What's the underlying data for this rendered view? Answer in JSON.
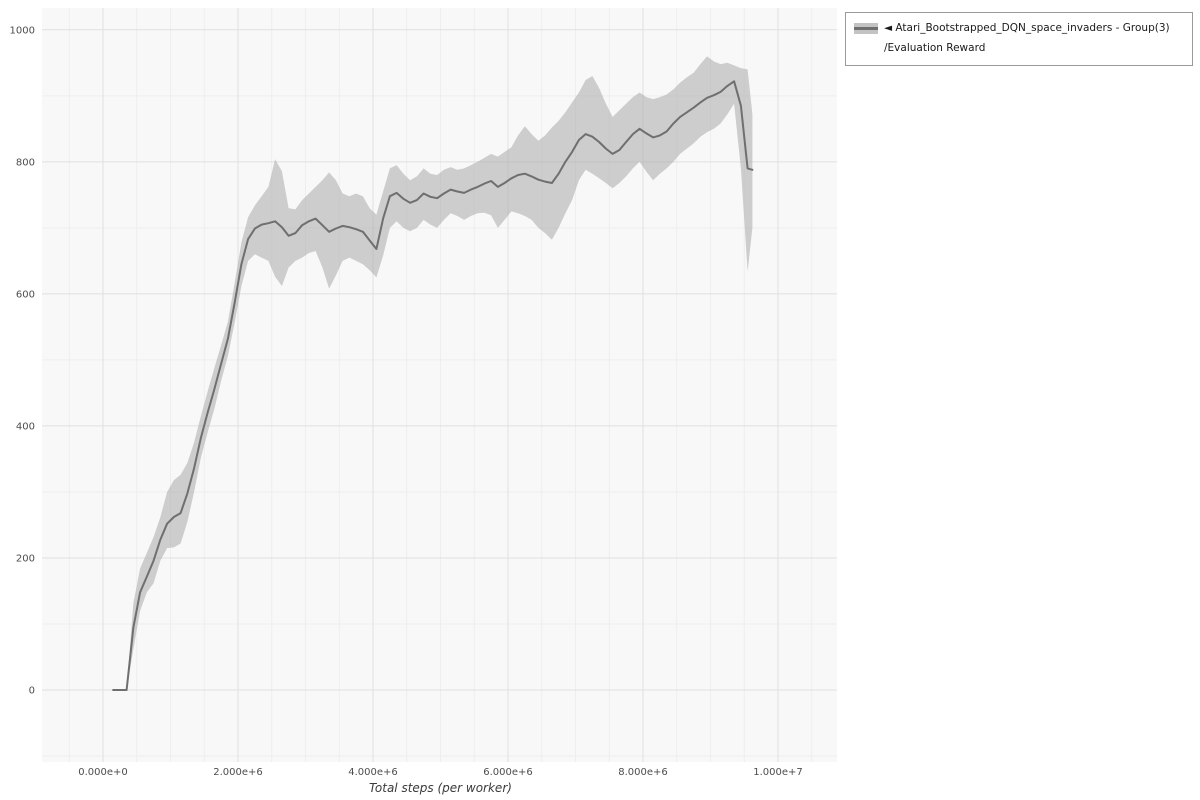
{
  "style": {
    "page_bg": "#ffffff",
    "plot_bg": "#f8f8f8",
    "grid_major": "#e0e0e0",
    "grid_minor": "#eeeeee",
    "tick_color": "#4d4d4d",
    "line_color": "#6f6f6f",
    "band_color": "#a9a9a9"
  },
  "legend": {
    "toggle_icon": "◄",
    "series_name": "Atari_Bootstrapped_DQN_space_invaders - Group(3)",
    "metric_name": "/Evaluation Reward"
  },
  "chart_data": {
    "type": "line",
    "title": "",
    "xlabel": "Total steps (per worker)",
    "ylabel": "",
    "grid": true,
    "legend_position": "outside-top-right",
    "xlim": [
      -903700,
      10874000
    ],
    "ylim": [
      -109,
      1033
    ],
    "x_unit": 1000000,
    "x_minor_step": 500000,
    "y_minor_step": 100,
    "x_ticks": [
      0,
      2000000,
      4000000,
      6000000,
      8000000,
      10000000
    ],
    "x_tick_labels": [
      "0.000e+0",
      "2.000e+6",
      "4.000e+6",
      "6.000e+6",
      "8.000e+6",
      "1.000e+7"
    ],
    "y_ticks": [
      0,
      200,
      400,
      600,
      800,
      1000
    ],
    "y_tick_labels": [
      "0",
      "200",
      "400",
      "600",
      "800",
      "1000"
    ],
    "series": [
      {
        "name": "Atari_Bootstrapped_DQN_space_invaders - Group(3)/Evaluation Reward",
        "color": "#6f6f6f",
        "band_color": "#a9a9a9",
        "band_opacity": 0.55,
        "x": [
          0.15,
          0.35,
          0.45,
          0.55,
          0.65,
          0.75,
          0.85,
          0.95,
          1.05,
          1.15,
          1.25,
          1.35,
          1.45,
          1.55,
          1.65,
          1.75,
          1.85,
          1.95,
          2.05,
          2.15,
          2.25,
          2.35,
          2.45,
          2.55,
          2.65,
          2.75,
          2.85,
          2.95,
          3.05,
          3.15,
          3.25,
          3.35,
          3.45,
          3.55,
          3.65,
          3.75,
          3.85,
          3.95,
          4.05,
          4.15,
          4.25,
          4.35,
          4.45,
          4.55,
          4.65,
          4.75,
          4.85,
          4.95,
          5.05,
          5.15,
          5.25,
          5.35,
          5.45,
          5.55,
          5.65,
          5.75,
          5.85,
          5.95,
          6.05,
          6.15,
          6.25,
          6.35,
          6.45,
          6.55,
          6.65,
          6.75,
          6.85,
          6.95,
          7.05,
          7.15,
          7.25,
          7.35,
          7.45,
          7.55,
          7.65,
          7.75,
          7.85,
          7.95,
          8.05,
          8.15,
          8.25,
          8.35,
          8.45,
          8.55,
          8.65,
          8.75,
          8.85,
          8.95,
          9.05,
          9.15,
          9.25,
          9.35,
          9.45,
          9.55,
          9.62
        ],
        "mean": [
          0,
          0,
          95,
          148,
          172,
          196,
          228,
          252,
          262,
          268,
          298,
          336,
          382,
          420,
          456,
          494,
          532,
          586,
          645,
          683,
          699,
          705,
          707,
          710,
          701,
          688,
          692,
          704,
          710,
          714,
          704,
          694,
          699,
          703,
          701,
          698,
          694,
          681,
          668,
          714,
          748,
          753,
          744,
          738,
          742,
          752,
          747,
          745,
          752,
          758,
          755,
          753,
          758,
          762,
          767,
          771,
          762,
          768,
          775,
          780,
          782,
          778,
          773,
          770,
          768,
          782,
          800,
          815,
          833,
          842,
          838,
          830,
          820,
          812,
          818,
          830,
          842,
          850,
          843,
          837,
          840,
          846,
          858,
          868,
          875,
          882,
          890,
          897,
          901,
          906,
          915,
          922,
          885,
          790,
          788
        ],
        "lower": [
          0,
          0,
          62,
          120,
          148,
          162,
          196,
          215,
          216,
          222,
          255,
          300,
          352,
          390,
          426,
          468,
          506,
          556,
          612,
          650,
          660,
          655,
          650,
          626,
          612,
          640,
          650,
          655,
          662,
          665,
          640,
          608,
          628,
          650,
          655,
          650,
          645,
          636,
          625,
          658,
          700,
          710,
          700,
          695,
          700,
          712,
          705,
          700,
          712,
          722,
          718,
          712,
          718,
          722,
          723,
          719,
          700,
          712,
          725,
          722,
          718,
          712,
          700,
          692,
          682,
          700,
          722,
          742,
          772,
          788,
          782,
          775,
          768,
          760,
          768,
          778,
          790,
          800,
          785,
          772,
          782,
          790,
          800,
          812,
          820,
          828,
          838,
          845,
          850,
          858,
          872,
          888,
          790,
          634,
          700
        ],
        "upper": [
          0,
          0,
          132,
          184,
          208,
          232,
          262,
          300,
          318,
          326,
          344,
          375,
          415,
          452,
          488,
          522,
          558,
          616,
          678,
          716,
          734,
          748,
          762,
          804,
          786,
          730,
          728,
          742,
          752,
          762,
          772,
          784,
          772,
          752,
          748,
          752,
          748,
          730,
          720,
          755,
          790,
          795,
          782,
          772,
          778,
          790,
          782,
          780,
          788,
          792,
          788,
          790,
          795,
          800,
          806,
          812,
          808,
          815,
          822,
          840,
          854,
          842,
          832,
          840,
          852,
          862,
          875,
          890,
          905,
          924,
          930,
          912,
          888,
          868,
          878,
          888,
          898,
          905,
          898,
          895,
          898,
          902,
          910,
          920,
          928,
          935,
          948,
          960,
          952,
          948,
          950,
          946,
          942,
          940,
          872
        ]
      }
    ]
  }
}
